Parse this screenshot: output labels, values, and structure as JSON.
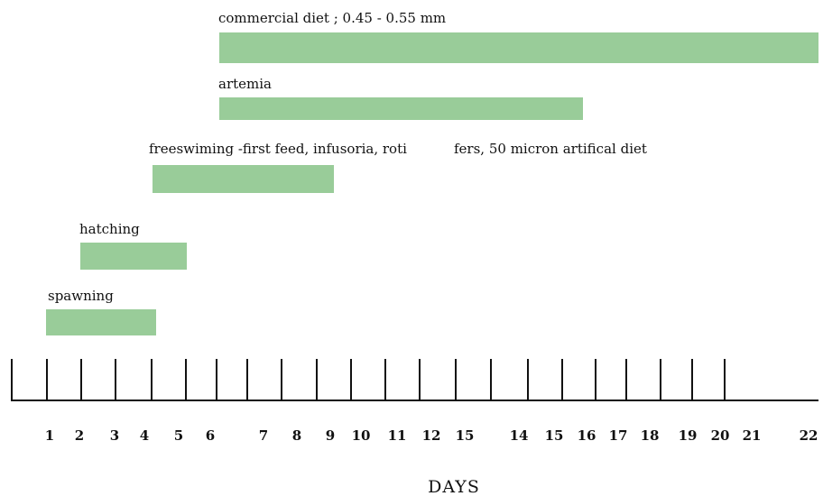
{
  "chart_data": {
    "type": "bar",
    "title": "",
    "xlabel": "DAYS",
    "ylabel": "",
    "bar_color": "#99cc99",
    "axis_color": "#111111",
    "tasks": [
      {
        "label": "commercial diet ; 0.45 - 0.55 mm",
        "start": 6,
        "end": 22
      },
      {
        "label": "artemia",
        "start": 6,
        "end": 16
      },
      {
        "label": "freeswiming -first feed, infusoria, roti",
        "label_cont": "fers, 50 micron artifical diet",
        "start": 4,
        "end": 9
      },
      {
        "label": "hatching",
        "start": 2,
        "end": 5
      },
      {
        "label": "spawning",
        "start": 1,
        "end": 4
      }
    ],
    "tick_labels": [
      "1",
      "2",
      "3",
      "4",
      "5",
      "6",
      "7",
      "8",
      "9",
      "10",
      "11",
      "12",
      "15",
      "14",
      "15",
      "16",
      "17",
      "18",
      "19",
      "20",
      "21",
      "22"
    ]
  }
}
